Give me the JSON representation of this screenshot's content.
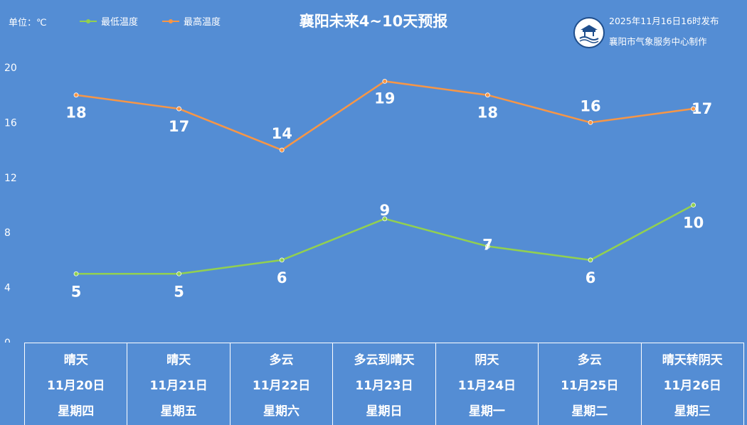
{
  "header": {
    "unit_label": "单位：℃",
    "title": "襄阳未来4~10天预报",
    "issue_time": "2025年11月16日16时发布",
    "producer": "襄阳市气象服务中心制作",
    "logo_icon": "xiangyang-weather-logo-icon"
  },
  "chart_data": {
    "type": "line",
    "title": "襄阳未来4~10天预报",
    "ylabel": "单位：℃",
    "ylim": [
      0,
      20
    ],
    "yticks": [
      "0",
      "4",
      "8",
      "12",
      "16",
      "20"
    ],
    "grid": false,
    "legend_position": "top-left",
    "categories": [
      "11月20日",
      "11月21日",
      "11月22日",
      "11月23日",
      "11月24日",
      "11月25日",
      "11月26日"
    ],
    "series": [
      {
        "name": "最低温度",
        "color": "#92d050",
        "values": [
          5,
          5,
          6,
          9,
          7,
          6,
          10
        ],
        "labels": [
          "5",
          "5",
          "6",
          "9",
          "7",
          "6",
          "10"
        ]
      },
      {
        "name": "最高温度",
        "color": "#f79646",
        "values": [
          18,
          17,
          14,
          19,
          18,
          16,
          17
        ],
        "labels": [
          "18",
          "17",
          "14",
          "19",
          "18",
          "16",
          "17"
        ]
      }
    ]
  },
  "days": [
    {
      "weather": "晴天",
      "date": "11月20日",
      "weekday": "星期四"
    },
    {
      "weather": "晴天",
      "date": "11月21日",
      "weekday": "星期五"
    },
    {
      "weather": "多云",
      "date": "11月22日",
      "weekday": "星期六"
    },
    {
      "weather": "多云到晴天",
      "date": "11月23日",
      "weekday": "星期日"
    },
    {
      "weather": "阴天",
      "date": "11月24日",
      "weekday": "星期一"
    },
    {
      "weather": "多云",
      "date": "11月25日",
      "weekday": "星期二"
    },
    {
      "weather": "晴天转阴天",
      "date": "11月26日",
      "weekday": "星期三"
    }
  ]
}
